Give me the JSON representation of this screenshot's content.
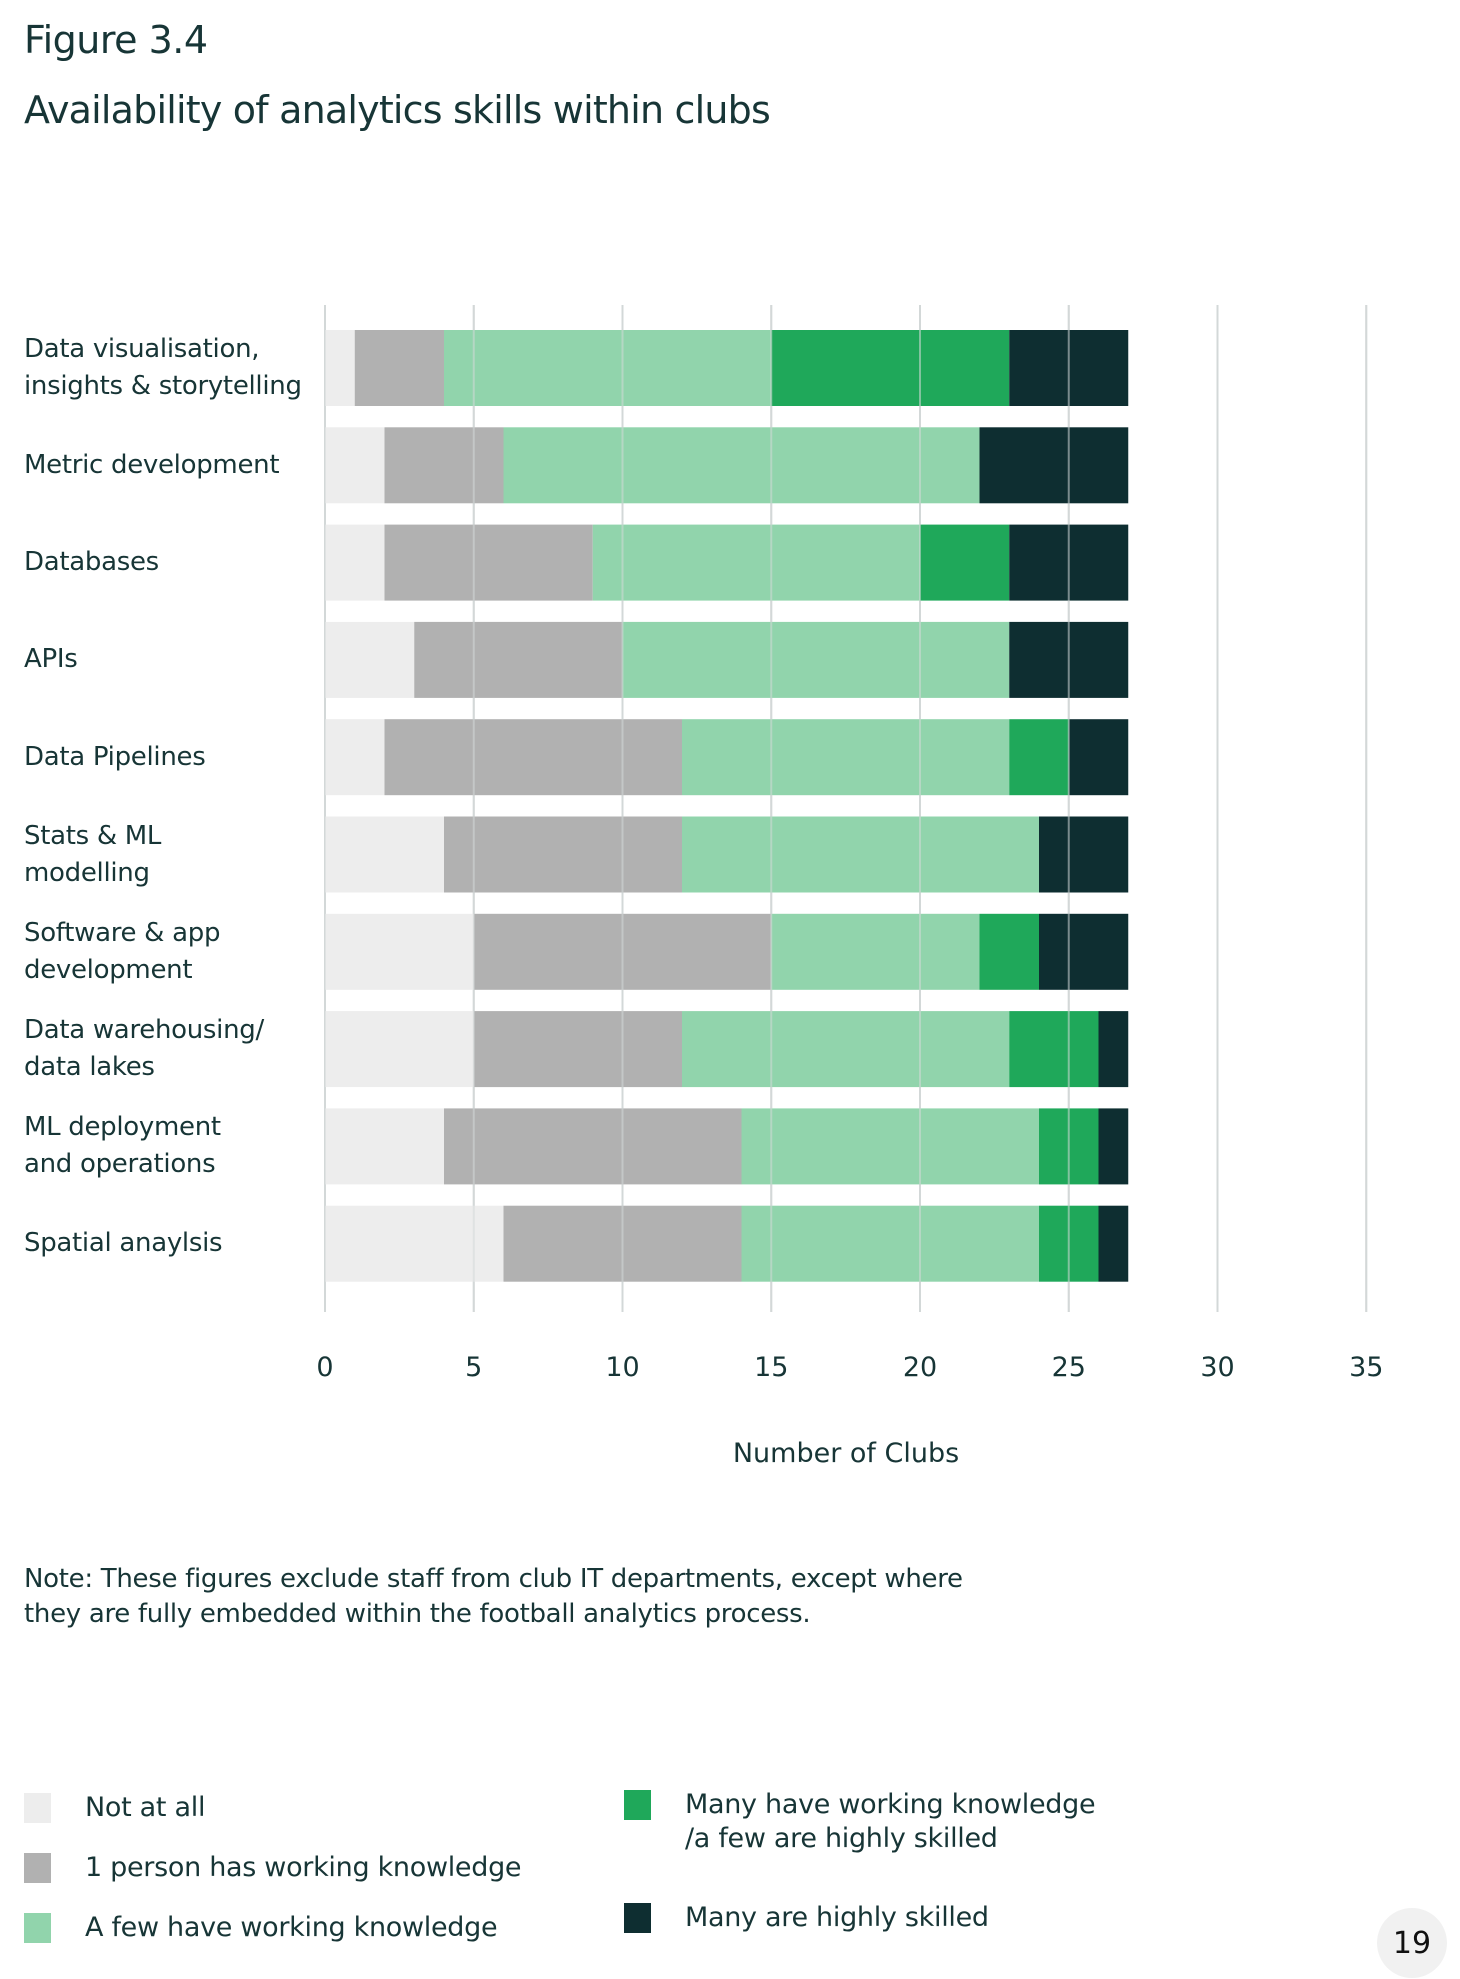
{
  "header": {
    "figure_label": "Figure 3.4",
    "title": "Availability of analytics skills within clubs"
  },
  "chart_data": {
    "type": "bar",
    "orientation": "horizontal",
    "stacked": true,
    "title": "Availability of analytics skills within clubs",
    "xlabel": "Number of Clubs",
    "ylabel": "",
    "xlim": [
      0,
      35
    ],
    "xticks": [
      "0",
      "5",
      "10",
      "15",
      "20",
      "25",
      "30",
      "35"
    ],
    "grid": true,
    "legend_position": "bottom",
    "categories": [
      "Data visualisation,\ninsights & storytelling",
      "Metric development",
      "Databases",
      "APIs",
      "Data Pipelines",
      "Stats & ML\nmodelling",
      "Software & app\ndevelopment",
      "Data warehousing/\ndata lakes",
      "ML deployment\nand operations",
      "Spatial anaylsis"
    ],
    "series": [
      {
        "name": "Not at all",
        "color": "#ededed",
        "values": [
          1,
          2,
          2,
          3,
          2,
          4,
          5,
          5,
          4,
          6
        ]
      },
      {
        "name": "1 person has working knowledge",
        "color": "#b1b1b1",
        "values": [
          3,
          4,
          7,
          7,
          10,
          8,
          10,
          7,
          10,
          8
        ]
      },
      {
        "name": "A few have working knowledge",
        "color": "#91d4ac",
        "values": [
          11,
          16,
          11,
          13,
          11,
          12,
          7,
          11,
          10,
          10
        ]
      },
      {
        "name": "Many have working knowledge\n/a few are highly skilled",
        "color": "#1fa85a",
        "values": [
          8,
          0,
          3,
          0,
          2,
          0,
          2,
          3,
          2,
          2
        ]
      },
      {
        "name": "Many are highly skilled",
        "color": "#0e2e31",
        "values": [
          4,
          5,
          4,
          4,
          2,
          3,
          3,
          1,
          1,
          1
        ]
      }
    ]
  },
  "note": "Note: These figures exclude staff from club IT departments, except where they are fully embedded within the football analytics process.",
  "page_number": "19"
}
